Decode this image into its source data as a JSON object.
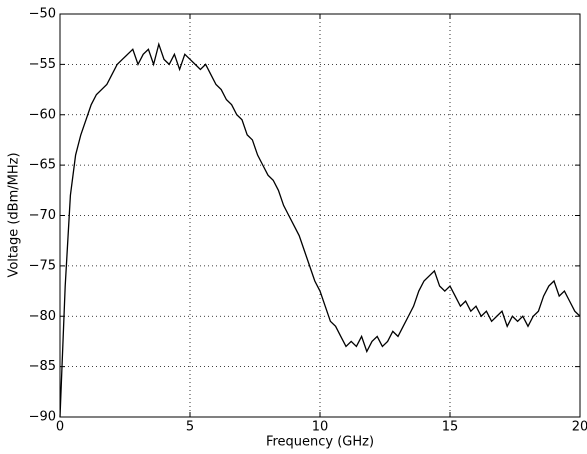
{
  "chart_data": {
    "type": "line",
    "xlabel": "Frequency (GHz)",
    "ylabel": "Voltage (dBm/MHz)",
    "x": [
      0,
      0.2,
      0.4,
      0.6,
      0.8,
      1.0,
      1.2,
      1.4,
      1.6,
      1.8,
      2.0,
      2.2,
      2.4,
      2.6,
      2.8,
      3.0,
      3.2,
      3.4,
      3.6,
      3.8,
      4.0,
      4.2,
      4.4,
      4.6,
      4.8,
      5.0,
      5.2,
      5.4,
      5.6,
      5.8,
      6.0,
      6.2,
      6.4,
      6.6,
      6.8,
      7.0,
      7.2,
      7.4,
      7.6,
      7.8,
      8.0,
      8.2,
      8.4,
      8.6,
      8.8,
      9.0,
      9.2,
      9.4,
      9.6,
      9.8,
      10.0,
      10.2,
      10.4,
      10.6,
      10.8,
      11.0,
      11.2,
      11.4,
      11.6,
      11.8,
      12.0,
      12.2,
      12.4,
      12.6,
      12.8,
      13.0,
      13.2,
      13.4,
      13.6,
      13.8,
      14.0,
      14.2,
      14.4,
      14.6,
      14.8,
      15.0,
      15.2,
      15.4,
      15.6,
      15.8,
      16.0,
      16.2,
      16.4,
      16.6,
      16.8,
      17.0,
      17.2,
      17.4,
      17.6,
      17.8,
      18.0,
      18.2,
      18.4,
      18.6,
      18.8,
      19.0,
      19.2,
      19.4,
      19.6,
      19.8,
      20.0
    ],
    "series": [
      {
        "color": "#000000",
        "values": [
          -90,
          -77,
          -68,
          -64,
          -62,
          -60.5,
          -59,
          -58,
          -57.5,
          -57,
          -56,
          -55,
          -54.5,
          -54,
          -53.5,
          -55,
          -54,
          -53.5,
          -55,
          -53,
          -54.5,
          -55,
          -54,
          -55.5,
          -54,
          -54.5,
          -55,
          -55.5,
          -55,
          -56,
          -57,
          -57.5,
          -58.5,
          -59,
          -60,
          -60.5,
          -62,
          -62.5,
          -64,
          -65,
          -66,
          -66.5,
          -67.5,
          -69,
          -70,
          -71,
          -72,
          -73.5,
          -75,
          -76.5,
          -77.5,
          -79,
          -80.5,
          -81,
          -82,
          -83,
          -82.5,
          -83,
          -82,
          -83.5,
          -82.5,
          -82,
          -83,
          -82.5,
          -81.5,
          -82,
          -81,
          -80,
          -79,
          -77.5,
          -76.5,
          -76,
          -75.5,
          -77,
          -77.5,
          -77,
          -78,
          -79,
          -78.5,
          -79.5,
          -79,
          -80,
          -79.5,
          -80.5,
          -80,
          -79.5,
          -81,
          -80,
          -80.5,
          -80,
          -81,
          -80,
          -79.5,
          -78,
          -77,
          -76.5,
          -78,
          -77.5,
          -78.5,
          -79.5,
          -80
        ]
      }
    ],
    "xlim": [
      0,
      20
    ],
    "xticks": [
      0,
      5,
      10,
      15,
      20
    ],
    "ylim": [
      -90,
      -50
    ],
    "yticks": [
      {
        "value": -90,
        "label": "−90"
      },
      {
        "value": -85,
        "label": "−85"
      },
      {
        "value": -80,
        "label": "−80"
      },
      {
        "value": -75,
        "label": "−75"
      },
      {
        "value": -70,
        "label": "−70"
      },
      {
        "value": -65,
        "label": "−65"
      },
      {
        "value": -60,
        "label": "−60"
      },
      {
        "value": -55,
        "label": "−55"
      },
      {
        "value": -50,
        "label": "−50"
      }
    ],
    "grid": true
  }
}
